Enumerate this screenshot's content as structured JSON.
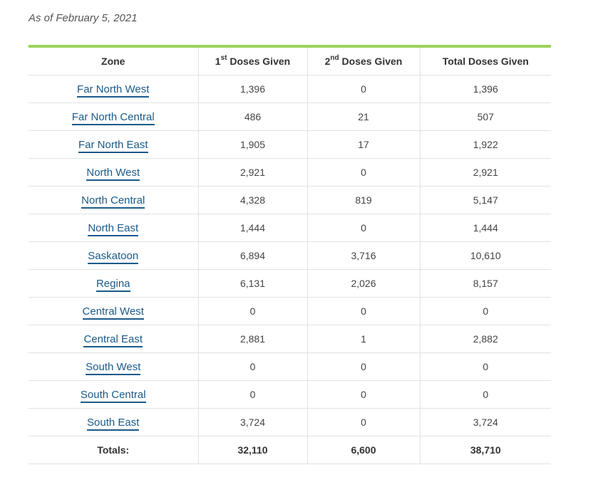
{
  "as_of": "As of February 5, 2021",
  "colors": {
    "accent_bar": "#9bd35a",
    "link": "#1a5a8a",
    "grid": "#e2e2e2"
  },
  "headers": {
    "zone": "Zone",
    "first_sup": "st",
    "first_num": "1",
    "first_rest": "Doses Given",
    "second_num": "2",
    "second_sup": "nd",
    "second_rest": "Doses Given",
    "total": "Total Doses Given"
  },
  "rows": [
    {
      "zone": "Far North West",
      "first": "1,396",
      "second": "0",
      "total": "1,396"
    },
    {
      "zone": "Far North Central",
      "first": "486",
      "second": "21",
      "total": "507"
    },
    {
      "zone": "Far North East",
      "first": "1,905",
      "second": "17",
      "total": "1,922"
    },
    {
      "zone": "North West",
      "first": "2,921",
      "second": "0",
      "total": "2,921"
    },
    {
      "zone": "North Central",
      "first": "4,328",
      "second": "819",
      "total": "5,147"
    },
    {
      "zone": "North East",
      "first": "1,444",
      "second": "0",
      "total": "1,444"
    },
    {
      "zone": "Saskatoon",
      "first": "6,894",
      "second": "3,716",
      "total": "10,610"
    },
    {
      "zone": "Regina",
      "first": "6,131",
      "second": "2,026",
      "total": "8,157"
    },
    {
      "zone": "Central West",
      "first": "0",
      "second": "0",
      "total": "0"
    },
    {
      "zone": "Central East",
      "first": "2,881",
      "second": "1",
      "total": "2,882"
    },
    {
      "zone": "South West",
      "first": "0",
      "second": "0",
      "total": "0"
    },
    {
      "zone": "South Central",
      "first": "0",
      "second": "0",
      "total": "0"
    },
    {
      "zone": "South East",
      "first": "3,724",
      "second": "0",
      "total": "3,724"
    }
  ],
  "totals": {
    "label": "Totals:",
    "first": "32,110",
    "second": "6,600",
    "total": "38,710"
  }
}
